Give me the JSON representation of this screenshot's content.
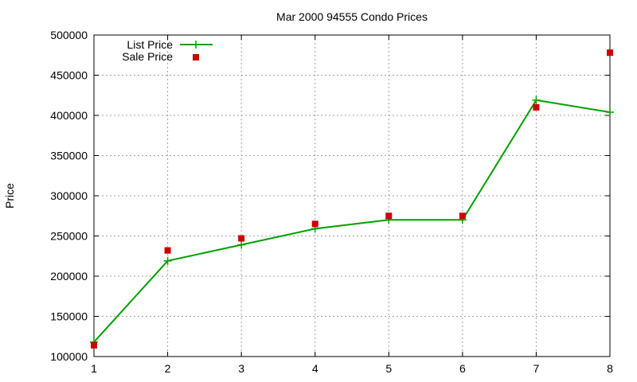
{
  "chart_data": {
    "type": "line",
    "title": "Mar 2000 94555 Condo Prices",
    "xlabel": "",
    "ylabel": "Price",
    "xlim": [
      1,
      8
    ],
    "ylim": [
      100000,
      500000
    ],
    "xticks": [
      1,
      2,
      3,
      4,
      5,
      6,
      7,
      8
    ],
    "yticks": [
      100000,
      150000,
      200000,
      250000,
      300000,
      350000,
      400000,
      450000,
      500000
    ],
    "grid": true,
    "legend_position": "top-left",
    "series": [
      {
        "name": "List Price",
        "style": "line+plus",
        "color": "#00a000",
        "x": [
          1,
          2,
          3,
          4,
          5,
          6,
          7,
          8
        ],
        "y": [
          118000,
          219000,
          239000,
          259000,
          270000,
          270000,
          419000,
          404000
        ]
      },
      {
        "name": "Sale Price",
        "style": "square-points",
        "color": "#cc0000",
        "x": [
          1,
          2,
          3,
          4,
          5,
          6,
          7,
          8
        ],
        "y": [
          114000,
          232000,
          247000,
          265000,
          275000,
          275000,
          410000,
          478000
        ]
      }
    ]
  }
}
